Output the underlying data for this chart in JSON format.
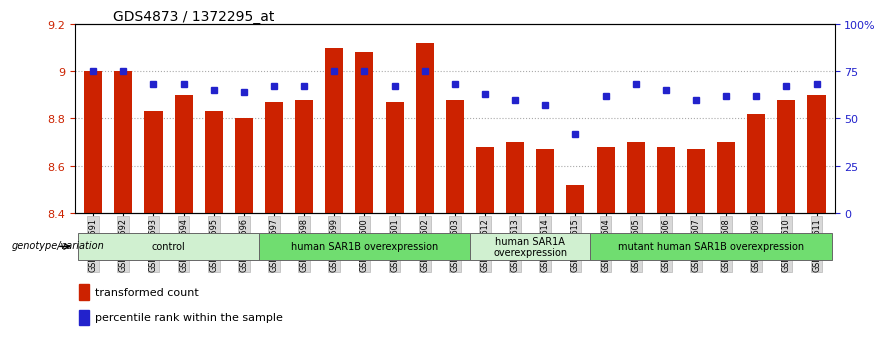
{
  "title": "GDS4873 / 1372295_at",
  "samples": [
    "GSM1279591",
    "GSM1279592",
    "GSM1279593",
    "GSM1279594",
    "GSM1279595",
    "GSM1279596",
    "GSM1279597",
    "GSM1279598",
    "GSM1279599",
    "GSM1279600",
    "GSM1279601",
    "GSM1279602",
    "GSM1279603",
    "GSM1279612",
    "GSM1279613",
    "GSM1279614",
    "GSM1279615",
    "GSM1279604",
    "GSM1279605",
    "GSM1279606",
    "GSM1279607",
    "GSM1279608",
    "GSM1279609",
    "GSM1279610",
    "GSM1279611"
  ],
  "bar_values": [
    9.0,
    9.0,
    8.83,
    8.9,
    8.83,
    8.8,
    8.87,
    8.88,
    9.1,
    9.08,
    8.87,
    9.12,
    8.88,
    8.68,
    8.7,
    8.67,
    8.52,
    8.68,
    8.7,
    8.68,
    8.67,
    8.7,
    8.82,
    8.88,
    8.9
  ],
  "percentile_values": [
    75,
    75,
    68,
    68,
    65,
    64,
    67,
    67,
    75,
    75,
    67,
    75,
    68,
    63,
    60,
    57,
    42,
    62,
    68,
    65,
    60,
    62,
    62,
    67,
    68
  ],
  "ylim": [
    8.4,
    9.2
  ],
  "yticks": [
    8.4,
    8.6,
    8.8,
    9.0,
    9.2
  ],
  "yticklabels": [
    "8.4",
    "8.6",
    "8.8",
    "9",
    "9.2"
  ],
  "percentile_ylim": [
    0,
    100
  ],
  "percentile_yticks": [
    0,
    25,
    50,
    75,
    100
  ],
  "percentile_yticklabels": [
    "0",
    "25",
    "50",
    "75",
    "100%"
  ],
  "bar_color": "#cc2200",
  "dot_color": "#2222cc",
  "groups": [
    {
      "label": "control",
      "start": 0,
      "end": 6,
      "color": "#d0f0d0"
    },
    {
      "label": "human SAR1B overexpression",
      "start": 6,
      "end": 13,
      "color": "#70dd70"
    },
    {
      "label": "human SAR1A\noverexpression",
      "start": 13,
      "end": 17,
      "color": "#d0f0d0"
    },
    {
      "label": "mutant human SAR1B overexpression",
      "start": 17,
      "end": 25,
      "color": "#70dd70"
    }
  ],
  "left_axis_color": "#cc2200",
  "right_axis_color": "#2222cc",
  "grid_color": "#aaaaaa",
  "legend_red_label": "transformed count",
  "legend_blue_label": "percentile rank within the sample",
  "genotype_label": "genotype/variation"
}
